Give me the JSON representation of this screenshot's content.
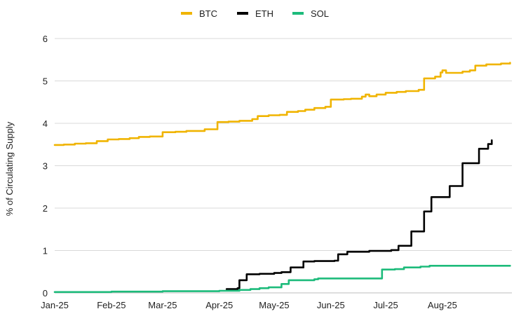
{
  "chart_data": {
    "type": "line",
    "title": "",
    "xlabel": "",
    "ylabel": "% of Circulating Supply",
    "ylim": [
      0,
      6
    ],
    "yticks": [
      0,
      1,
      2,
      3,
      4,
      5,
      6
    ],
    "xlim": [
      "2025-01-01",
      "2025-09-08"
    ],
    "xticks": [
      {
        "date": "2025-01-01",
        "label": "Jan-25"
      },
      {
        "date": "2025-02-01",
        "label": "Feb-25"
      },
      {
        "date": "2025-03-01",
        "label": "Mar-25"
      },
      {
        "date": "2025-04-01",
        "label": "Apr-25"
      },
      {
        "date": "2025-05-01",
        "label": "May-25"
      },
      {
        "date": "2025-06-01",
        "label": "Jun-25"
      },
      {
        "date": "2025-07-01",
        "label": "Jul-25"
      },
      {
        "date": "2025-08-01",
        "label": "Aug-25"
      }
    ],
    "grid": true,
    "legend_position": "top-center",
    "series": [
      {
        "name": "BTC",
        "color": "#F0B400",
        "points": [
          [
            "2025-01-01",
            3.49
          ],
          [
            "2025-01-06",
            3.5
          ],
          [
            "2025-01-12",
            3.52
          ],
          [
            "2025-01-18",
            3.53
          ],
          [
            "2025-01-24",
            3.58
          ],
          [
            "2025-01-30",
            3.62
          ],
          [
            "2025-02-05",
            3.63
          ],
          [
            "2025-02-11",
            3.65
          ],
          [
            "2025-02-16",
            3.68
          ],
          [
            "2025-02-22",
            3.69
          ],
          [
            "2025-03-01",
            3.79
          ],
          [
            "2025-03-08",
            3.8
          ],
          [
            "2025-03-14",
            3.82
          ],
          [
            "2025-03-24",
            3.86
          ],
          [
            "2025-03-31",
            4.03
          ],
          [
            "2025-04-06",
            4.04
          ],
          [
            "2025-04-12",
            4.06
          ],
          [
            "2025-04-19",
            4.1
          ],
          [
            "2025-04-22",
            4.17
          ],
          [
            "2025-04-28",
            4.19
          ],
          [
            "2025-05-04",
            4.2
          ],
          [
            "2025-05-08",
            4.27
          ],
          [
            "2025-05-14",
            4.29
          ],
          [
            "2025-05-18",
            4.32
          ],
          [
            "2025-05-23",
            4.36
          ],
          [
            "2025-05-29",
            4.39
          ],
          [
            "2025-06-01",
            4.56
          ],
          [
            "2025-06-08",
            4.57
          ],
          [
            "2025-06-12",
            4.58
          ],
          [
            "2025-06-18",
            4.63
          ],
          [
            "2025-06-20",
            4.68
          ],
          [
            "2025-06-22",
            4.64
          ],
          [
            "2025-06-26",
            4.68
          ],
          [
            "2025-07-01",
            4.72
          ],
          [
            "2025-07-07",
            4.74
          ],
          [
            "2025-07-12",
            4.76
          ],
          [
            "2025-07-19",
            4.79
          ],
          [
            "2025-07-22",
            5.06
          ],
          [
            "2025-07-28",
            5.1
          ],
          [
            "2025-07-31",
            5.2
          ],
          [
            "2025-08-01",
            5.25
          ],
          [
            "2025-08-03",
            5.19
          ],
          [
            "2025-08-12",
            5.22
          ],
          [
            "2025-08-16",
            5.25
          ],
          [
            "2025-08-19",
            5.36
          ],
          [
            "2025-08-25",
            5.39
          ],
          [
            "2025-09-02",
            5.41
          ],
          [
            "2025-09-07",
            5.43
          ]
        ]
      },
      {
        "name": "ETH",
        "color": "#000000",
        "points": [
          [
            "2025-04-05",
            0.09
          ],
          [
            "2025-04-11",
            0.11
          ],
          [
            "2025-04-12",
            0.3
          ],
          [
            "2025-04-16",
            0.44
          ],
          [
            "2025-04-23",
            0.45
          ],
          [
            "2025-05-01",
            0.47
          ],
          [
            "2025-05-05",
            0.49
          ],
          [
            "2025-05-10",
            0.6
          ],
          [
            "2025-05-17",
            0.74
          ],
          [
            "2025-05-23",
            0.75
          ],
          [
            "2025-06-03",
            0.76
          ],
          [
            "2025-06-05",
            0.91
          ],
          [
            "2025-06-10",
            0.97
          ],
          [
            "2025-06-22",
            0.99
          ],
          [
            "2025-07-04",
            1.01
          ],
          [
            "2025-07-08",
            1.11
          ],
          [
            "2025-07-15",
            1.45
          ],
          [
            "2025-07-22",
            1.92
          ],
          [
            "2025-07-26",
            2.26
          ],
          [
            "2025-08-05",
            2.52
          ],
          [
            "2025-08-12",
            3.06
          ],
          [
            "2025-08-21",
            3.4
          ],
          [
            "2025-08-26",
            3.51
          ],
          [
            "2025-08-28",
            3.6
          ]
        ]
      },
      {
        "name": "SOL",
        "color": "#1DBB7B",
        "points": [
          [
            "2025-01-01",
            0.02
          ],
          [
            "2025-02-01",
            0.03
          ],
          [
            "2025-03-01",
            0.04
          ],
          [
            "2025-04-01",
            0.05
          ],
          [
            "2025-04-12",
            0.07
          ],
          [
            "2025-04-18",
            0.09
          ],
          [
            "2025-04-23",
            0.11
          ],
          [
            "2025-04-28",
            0.13
          ],
          [
            "2025-05-05",
            0.21
          ],
          [
            "2025-05-09",
            0.3
          ],
          [
            "2025-05-16",
            0.3
          ],
          [
            "2025-05-23",
            0.32
          ],
          [
            "2025-05-25",
            0.34
          ],
          [
            "2025-06-27",
            0.34
          ],
          [
            "2025-06-29",
            0.55
          ],
          [
            "2025-07-06",
            0.56
          ],
          [
            "2025-07-11",
            0.6
          ],
          [
            "2025-07-20",
            0.62
          ],
          [
            "2025-07-25",
            0.64
          ],
          [
            "2025-08-10",
            0.64
          ],
          [
            "2025-09-07",
            0.64
          ]
        ]
      }
    ]
  }
}
